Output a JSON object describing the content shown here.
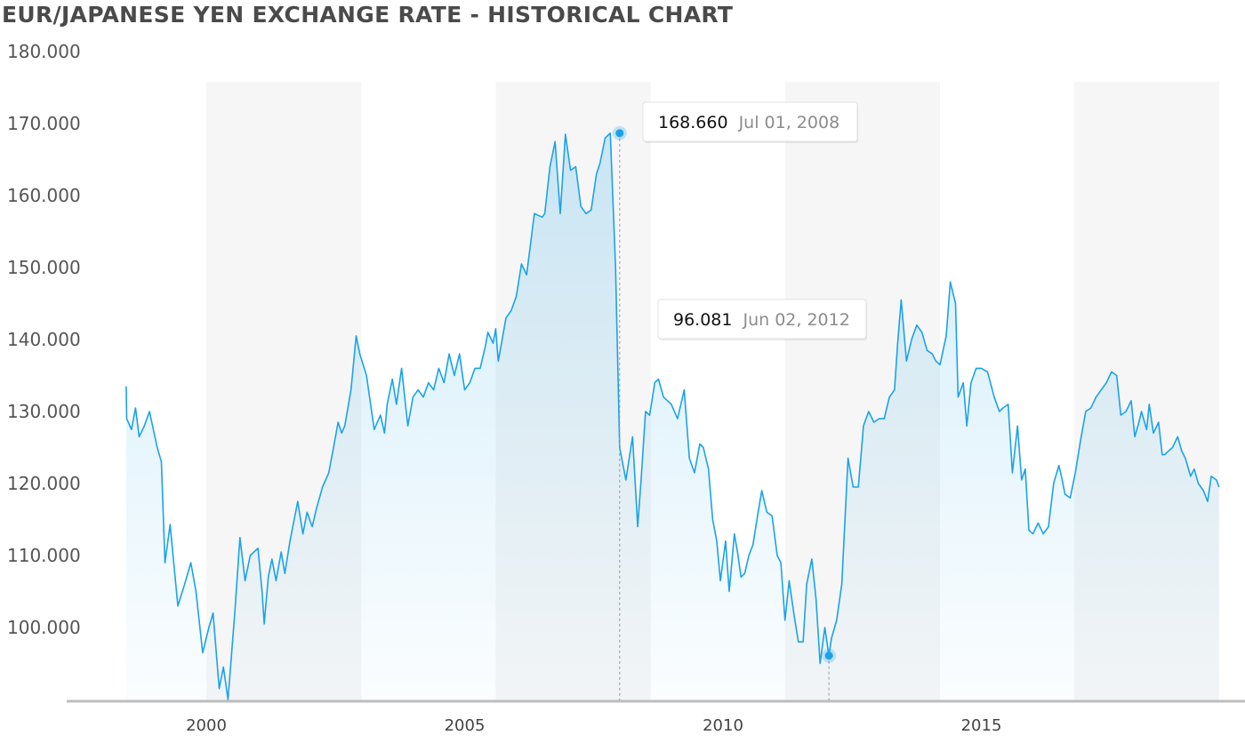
{
  "chart_data": {
    "type": "area",
    "title": "EUR/JAPANESE YEN EXCHANGE RATE - HISTORICAL CHART",
    "xlabel": "",
    "ylabel": "",
    "xlim": [
      1998.4,
      2019.6
    ],
    "ylim": [
      90,
      180
    ],
    "y_ticks": [
      "100.000",
      "110.000",
      "120.000",
      "130.000",
      "140.000",
      "150.000",
      "160.000",
      "170.000",
      "180.000"
    ],
    "x_ticks": [
      "2000",
      "2005",
      "2010",
      "2015"
    ],
    "band_years": [
      [
        2000.0,
        2003.0
      ],
      [
        2005.6,
        2008.6
      ],
      [
        2011.2,
        2014.2
      ],
      [
        2016.8,
        2019.6
      ]
    ],
    "grid": false,
    "legend": "none",
    "colors": {
      "line": "#1aa3e8",
      "fill": "#1aa3e8",
      "band": "#f6f6f6",
      "axis": "#bdbdbd"
    },
    "series": [
      {
        "x": [
          1998.45,
          1998.46,
          1998.55,
          1998.63,
          1998.7,
          1998.8,
          1998.9,
          1999.05,
          1999.13,
          1999.2,
          1999.3,
          1999.45,
          1999.58,
          1999.7,
          1999.8,
          1999.93,
          2000.05,
          2000.13,
          2000.25,
          2000.33,
          2000.42,
          2000.55,
          2000.65,
          2000.75,
          2000.85,
          2001.0,
          2001.08,
          2001.12,
          2001.2,
          2001.27,
          2001.35,
          2001.45,
          2001.52,
          2001.62,
          2001.7,
          2001.77,
          2001.87,
          2001.95,
          2002.05,
          2002.13,
          2002.25,
          2002.37,
          2002.45,
          2002.55,
          2002.62,
          2002.68,
          2002.8,
          2002.9,
          2002.97,
          2003.1,
          2003.25,
          2003.37,
          2003.45,
          2003.5,
          2003.6,
          2003.68,
          2003.78,
          2003.9,
          2004.0,
          2004.1,
          2004.2,
          2004.3,
          2004.4,
          2004.5,
          2004.6,
          2004.7,
          2004.8,
          2004.9,
          2005.0,
          2005.1,
          2005.2,
          2005.3,
          2005.4,
          2005.45,
          2005.55,
          2005.6,
          2005.65,
          2005.8,
          2005.9,
          2006.0,
          2006.1,
          2006.2,
          2006.35,
          2006.5,
          2006.55,
          2006.65,
          2006.75,
          2006.85,
          2006.95,
          2007.05,
          2007.15,
          2007.25,
          2007.35,
          2007.45,
          2007.55,
          2007.62,
          2007.72,
          2007.82,
          2007.92,
          2008.0,
          2008.12,
          2008.25,
          2008.35,
          2008.42,
          2008.5,
          2008.58,
          2008.68,
          2008.75,
          2008.85,
          2009.0,
          2009.12,
          2009.25,
          2009.35,
          2009.45,
          2009.55,
          2009.62,
          2009.72,
          2009.8,
          2009.88,
          2009.95,
          2010.05,
          2010.12,
          2010.22,
          2010.28,
          2010.35,
          2010.42,
          2010.5,
          2010.58,
          2010.68,
          2010.75,
          2010.85,
          2010.95,
          2011.05,
          2011.12,
          2011.2,
          2011.28,
          2011.38,
          2011.46,
          2011.55,
          2011.62,
          2011.72,
          2011.8,
          2011.88,
          2011.97,
          2012.05,
          2012.1,
          2012.2,
          2012.3,
          2012.42,
          2012.52,
          2012.62,
          2012.72,
          2012.82,
          2012.92,
          2013.02,
          2013.12,
          2013.22,
          2013.32,
          2013.38,
          2013.45,
          2013.55,
          2013.65,
          2013.75,
          2013.85,
          2013.95,
          2014.05,
          2014.12,
          2014.2,
          2014.32,
          2014.4,
          2014.5,
          2014.55,
          2014.65,
          2014.72,
          2014.8,
          2014.9,
          2015.0,
          2015.12,
          2015.25,
          2015.35,
          2015.42,
          2015.52,
          2015.6,
          2015.7,
          2015.78,
          2015.85,
          2015.92,
          2016.0,
          2016.1,
          2016.2,
          2016.3,
          2016.4,
          2016.5,
          2016.55,
          2016.62,
          2016.72,
          2016.82,
          2016.92,
          2017.02,
          2017.12,
          2017.22,
          2017.32,
          2017.42,
          2017.52,
          2017.62,
          2017.7,
          2017.8,
          2017.9,
          2017.97,
          2018.05,
          2018.1,
          2018.2,
          2018.25,
          2018.33,
          2018.43,
          2018.5,
          2018.55,
          2018.62,
          2018.7,
          2018.8,
          2018.88,
          2018.95,
          2019.05,
          2019.12,
          2019.2,
          2019.3,
          2019.38,
          2019.45,
          2019.55,
          2019.6
        ],
        "y": [
          133.5,
          129.0,
          127.5,
          130.5,
          126.5,
          128.0,
          130.0,
          125.0,
          123.0,
          109.0,
          114.3,
          103.0,
          106.0,
          109.0,
          105.0,
          96.5,
          100.0,
          102.0,
          91.5,
          94.5,
          90.0,
          102.0,
          112.5,
          106.5,
          110.0,
          111.0,
          105.0,
          100.5,
          107.0,
          109.5,
          106.5,
          110.5,
          107.5,
          112.0,
          115.0,
          117.5,
          113.0,
          116.0,
          114.0,
          116.5,
          119.5,
          121.5,
          124.5,
          128.5,
          127.0,
          128.0,
          133.0,
          140.5,
          138.0,
          135.0,
          127.5,
          129.5,
          127.0,
          131.0,
          134.5,
          131.0,
          136.0,
          128.0,
          132.0,
          133.0,
          132.0,
          134.0,
          133.0,
          136.0,
          134.0,
          138.0,
          135.0,
          138.0,
          133.0,
          134.0,
          136.0,
          136.0,
          139.0,
          141.0,
          139.5,
          141.5,
          137.0,
          143.0,
          144.0,
          146.0,
          150.5,
          149.0,
          157.5,
          157.0,
          157.5,
          164.0,
          167.5,
          157.5,
          168.5,
          163.5,
          164.0,
          158.5,
          157.5,
          158.0,
          163.0,
          164.5,
          168.0,
          168.66,
          150.0,
          125.0,
          120.5,
          126.5,
          114.0,
          121.0,
          130.0,
          129.5,
          134.0,
          134.5,
          132.0,
          131.0,
          129.0,
          133.0,
          123.5,
          121.5,
          125.5,
          125.0,
          122.0,
          115.0,
          112.0,
          106.5,
          112.0,
          105.0,
          113.0,
          110.5,
          107.0,
          107.5,
          110.0,
          111.5,
          116.0,
          119.0,
          116.0,
          115.5,
          110.0,
          109.0,
          101.0,
          106.5,
          101.5,
          98.0,
          98.0,
          106.0,
          109.5,
          104.0,
          95.0,
          100.0,
          96.081,
          98.5,
          101.0,
          106.0,
          123.5,
          119.5,
          119.5,
          128.0,
          130.0,
          128.5,
          129.0,
          129.0,
          132.0,
          133.0,
          139.5,
          145.5,
          137.0,
          140.0,
          142.0,
          141.0,
          138.5,
          138.0,
          137.0,
          136.5,
          140.5,
          148.0,
          145.0,
          132.0,
          134.0,
          128.0,
          134.0,
          136.0,
          136.0,
          135.5,
          132.0,
          130.0,
          130.5,
          131.0,
          121.5,
          128.0,
          120.5,
          122.0,
          113.5,
          113.0,
          114.5,
          113.0,
          114.0,
          120.0,
          122.5,
          121.0,
          118.5,
          118.0,
          121.5,
          126.0,
          130.0,
          130.5,
          132.0,
          133.0,
          134.0,
          135.5,
          135.0,
          129.5,
          130.0,
          131.5,
          126.5,
          128.5,
          130.0,
          127.5,
          131.0,
          127.0,
          128.5,
          124.0,
          124.0,
          124.5,
          125.0,
          126.5,
          124.5,
          123.5,
          121.0,
          122.0,
          120.0,
          119.0,
          117.5,
          121.0,
          120.5,
          119.5
        ]
      }
    ],
    "highlights": [
      {
        "value": "168.660",
        "date": "Jul 01, 2008",
        "x": 2008.0,
        "y": 168.66
      },
      {
        "value": "96.081",
        "date": "Jun 02, 2012",
        "x": 2012.05,
        "y": 96.081
      }
    ]
  }
}
